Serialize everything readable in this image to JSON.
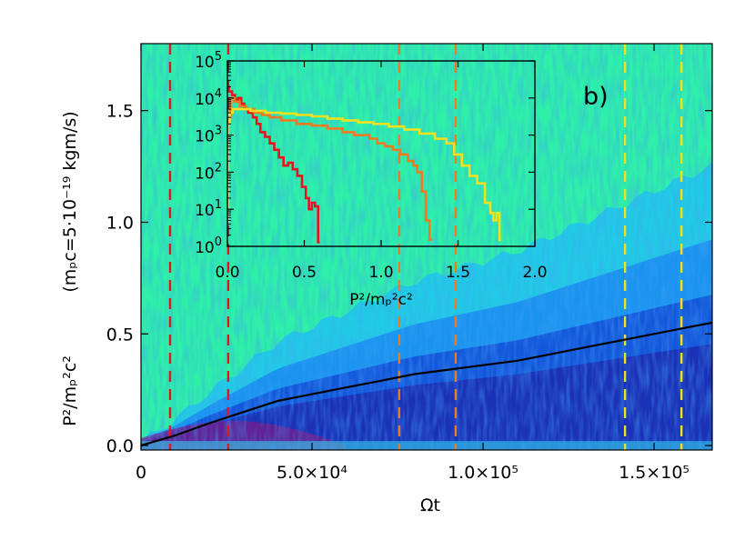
{
  "chart_data": [
    {
      "id": "main",
      "type": "heatmap",
      "panel_label": "b)",
      "xlabel": "Ωt",
      "ylabel_main": "P²/mₚ²c²",
      "ylabel_unit": "(mₚc=5·10⁻¹⁹ kgm/s)",
      "xlim": [
        0,
        167000
      ],
      "ylim": [
        -0.02,
        1.8
      ],
      "xticks": [
        {
          "value": 0,
          "label": "0"
        },
        {
          "value": 50000,
          "label": "5.0×10⁴"
        },
        {
          "value": 100000,
          "label": "1.0×10⁵"
        },
        {
          "value": 150000,
          "label": "1.5×10⁵"
        }
      ],
      "yticks": [
        {
          "value": 0.0,
          "label": "0.0"
        },
        {
          "value": 0.5,
          "label": "0.5"
        },
        {
          "value": 1.0,
          "label": "1.0"
        },
        {
          "value": 1.5,
          "label": "1.5"
        }
      ],
      "background_color": "#2ef0a8",
      "distribution_colors": [
        "#1fc4f0",
        "#1a8ef0",
        "#1450d8",
        "#1c2ab0",
        "#7a1e8c"
      ],
      "mean_line": {
        "color": "#000000",
        "x": [
          0,
          10000,
          20000,
          30000,
          40000,
          50000,
          60000,
          70000,
          80000,
          90000,
          100000,
          110000,
          120000,
          130000,
          140000,
          150000,
          160000,
          167000
        ],
        "y": [
          0.0,
          0.045,
          0.1,
          0.15,
          0.2,
          0.23,
          0.26,
          0.29,
          0.32,
          0.34,
          0.36,
          0.38,
          0.41,
          0.44,
          0.47,
          0.5,
          0.53,
          0.55
        ]
      },
      "markers": [
        {
          "x": 8500,
          "color": "#e8141c"
        },
        {
          "x": 25500,
          "color": "#e8141c"
        },
        {
          "x": 75500,
          "color": "#f07a1e"
        },
        {
          "x": 92000,
          "color": "#f07a1e"
        },
        {
          "x": 141500,
          "color": "#f0e01e"
        },
        {
          "x": 158000,
          "color": "#f0e01e"
        }
      ]
    },
    {
      "id": "inset",
      "type": "line",
      "xlabel": "P²/mₚ²c²",
      "xlim": [
        0,
        2.0
      ],
      "ylim_log10": [
        0,
        5
      ],
      "xticks": [
        {
          "value": 0.0,
          "label": "0.0"
        },
        {
          "value": 0.5,
          "label": "0.5"
        },
        {
          "value": 1.0,
          "label": "1.0"
        },
        {
          "value": 1.5,
          "label": "1.5"
        },
        {
          "value": 2.0,
          "label": "2.0"
        }
      ],
      "yticks": [
        {
          "value": 0,
          "base": "10",
          "exp": "0"
        },
        {
          "value": 1,
          "base": "10",
          "exp": "1"
        },
        {
          "value": 2,
          "base": "10",
          "exp": "2"
        },
        {
          "value": 3,
          "base": "10",
          "exp": "3"
        },
        {
          "value": 4,
          "base": "10",
          "exp": "4"
        },
        {
          "value": 5,
          "base": "10",
          "exp": "5"
        }
      ],
      "series": [
        {
          "color": "#e8141c",
          "x": [
            0.0,
            0.02,
            0.04,
            0.06,
            0.08,
            0.1,
            0.12,
            0.15,
            0.18,
            0.2,
            0.23,
            0.26,
            0.29,
            0.32,
            0.35,
            0.38,
            0.41,
            0.44,
            0.47,
            0.5,
            0.52,
            0.54,
            0.56,
            0.58,
            0.6
          ],
          "y": [
            20000,
            15000,
            12000,
            9000,
            10000,
            7000,
            5000,
            4000,
            3000,
            2000,
            1200,
            900,
            600,
            400,
            250,
            150,
            180,
            120,
            80,
            40,
            20,
            10,
            15,
            12,
            1.3
          ]
        },
        {
          "color": "#f07a1e",
          "x": [
            0.0,
            0.01,
            0.03,
            0.06,
            0.1,
            0.15,
            0.2,
            0.25,
            0.3,
            0.4,
            0.5,
            0.6,
            0.7,
            0.8,
            0.85,
            0.9,
            0.95,
            1.0,
            1.05,
            1.1,
            1.15,
            1.2,
            1.22,
            1.25,
            1.28,
            1.3,
            1.33
          ],
          "y": [
            1000,
            3000,
            10000,
            8000,
            6000,
            5000,
            4000,
            3500,
            3000,
            2500,
            2000,
            1800,
            1500,
            1200,
            1000,
            1000,
            800,
            600,
            500,
            400,
            300,
            200,
            150,
            100,
            30,
            5,
            1.5
          ]
        },
        {
          "color": "#f0e01e",
          "x": [
            0.0,
            0.01,
            0.02,
            0.05,
            0.1,
            0.2,
            0.3,
            0.4,
            0.5,
            0.6,
            0.7,
            0.8,
            0.9,
            1.0,
            1.1,
            1.2,
            1.3,
            1.4,
            1.45,
            1.5,
            1.55,
            1.6,
            1.65,
            1.7,
            1.72,
            1.74,
            1.76,
            1.78
          ],
          "y": [
            5,
            2000,
            4000,
            5000,
            5000,
            4500,
            4000,
            3800,
            3500,
            3200,
            2800,
            2500,
            2200,
            2000,
            1700,
            1400,
            1100,
            800,
            600,
            300,
            150,
            80,
            50,
            15,
            8,
            5,
            8,
            1.5
          ]
        }
      ]
    }
  ]
}
